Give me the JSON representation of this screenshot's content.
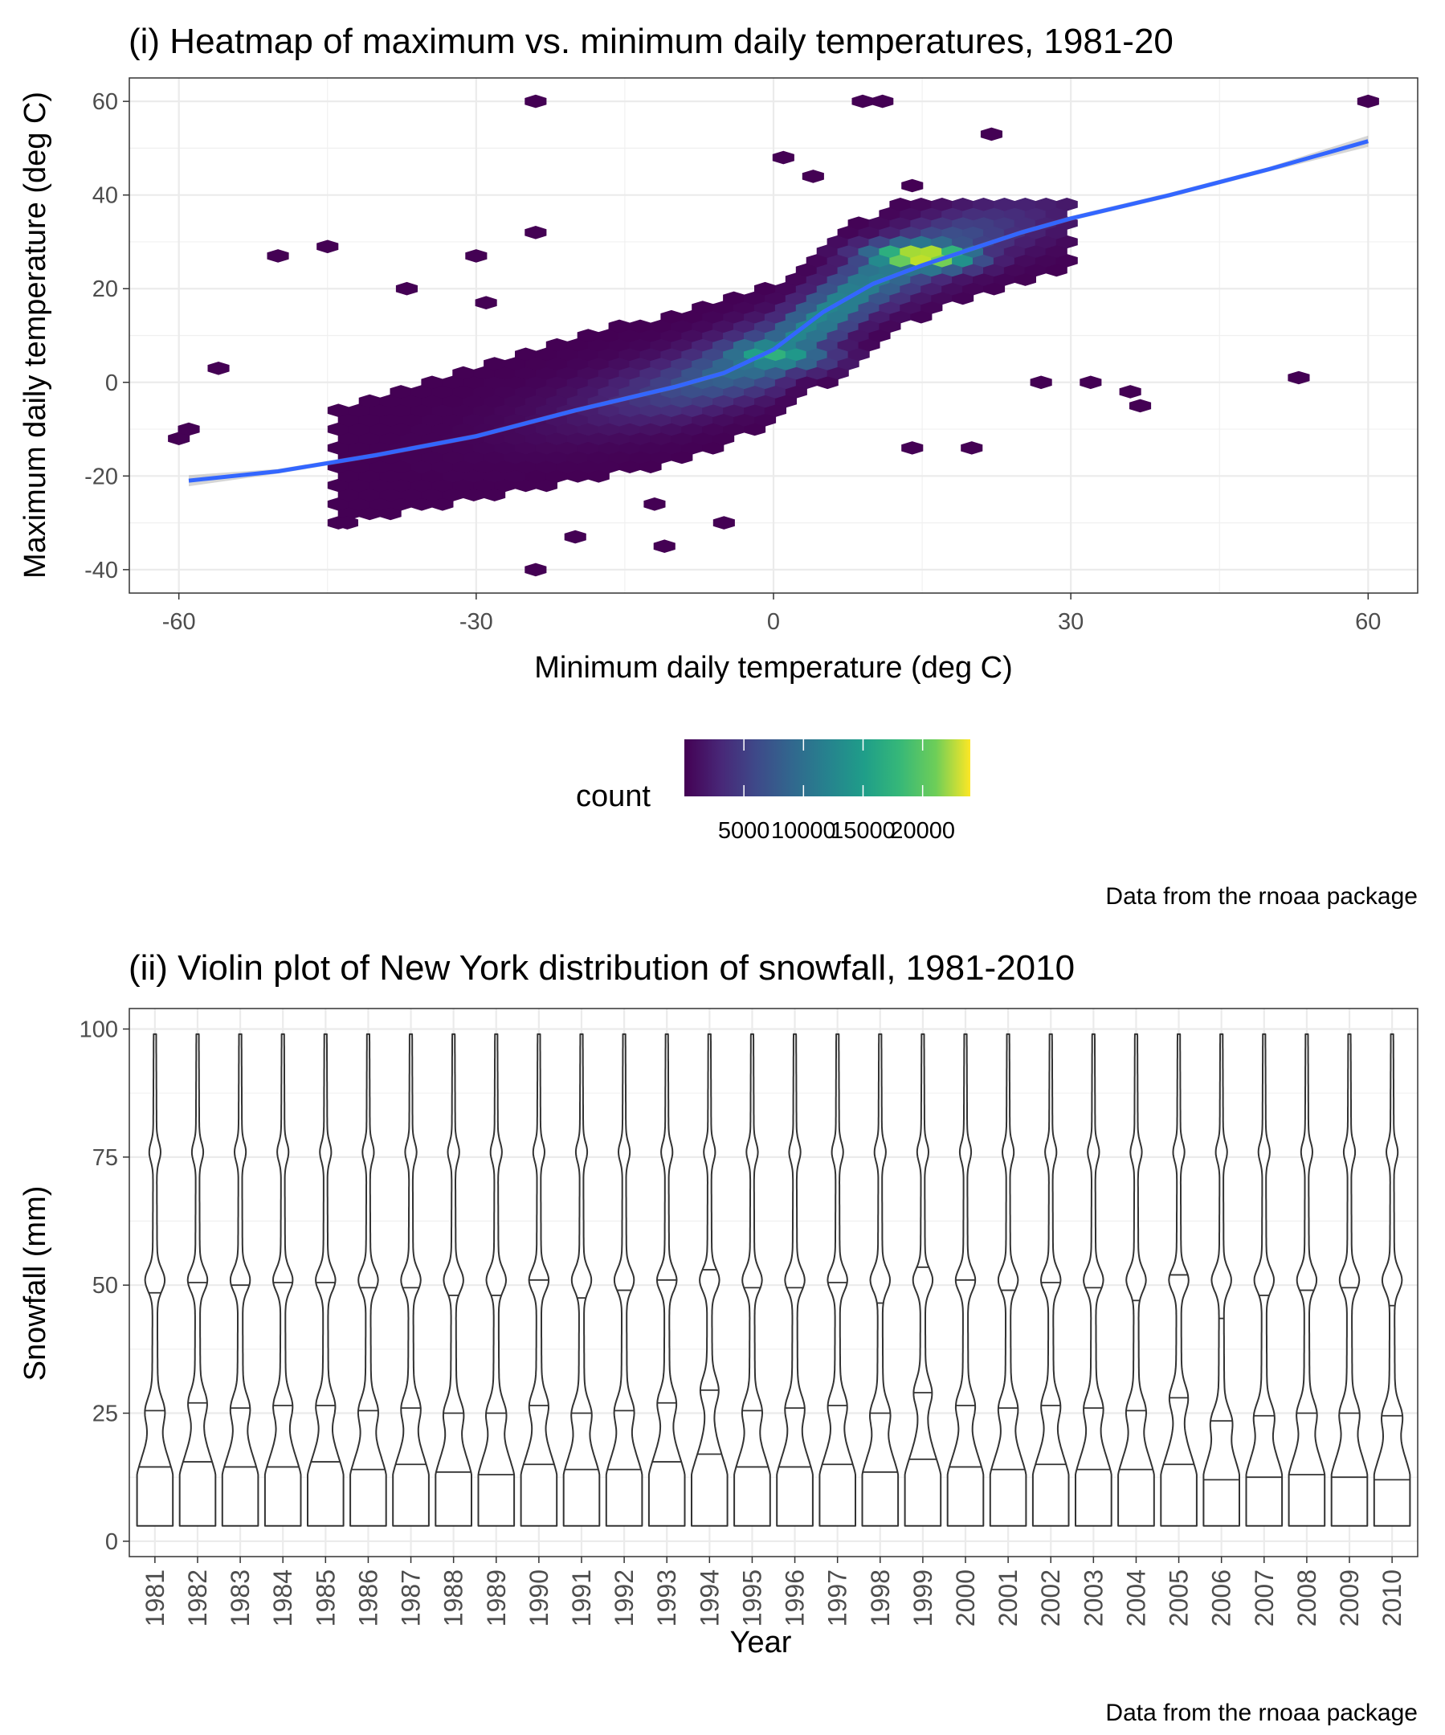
{
  "chart_data": [
    {
      "type": "heatmap",
      "subtype": "hexbin",
      "title": "(i) Heatmap of maximum vs. minimum daily temperatures, 1981-20",
      "xlabel": "Minimum daily temperature (deg C)",
      "ylabel": "Maximum daily temperature (deg C)",
      "xlim": [
        -65,
        65
      ],
      "ylim": [
        -45,
        65
      ],
      "x_ticks": [
        -60,
        -30,
        0,
        30,
        60
      ],
      "y_ticks": [
        -40,
        -20,
        0,
        20,
        40,
        60
      ],
      "grid": true,
      "legend": {
        "title": "count",
        "position": "bottom",
        "scale": "viridis",
        "range": [
          1,
          24000
        ],
        "tick_values": [
          5000,
          10000,
          15000,
          20000
        ],
        "tick_labels": [
          "5000",
          "10000",
          "15000",
          "20000"
        ]
      },
      "density_core": {
        "description_free": false,
        "peak": {
          "x": 15,
          "y": 27,
          "count": 23000
        },
        "ridge": [
          [
            -40,
            -16
          ],
          [
            -30,
            -11
          ],
          [
            -20,
            -6
          ],
          [
            -10,
            -1
          ],
          [
            0,
            6
          ],
          [
            5,
            14
          ],
          [
            10,
            22
          ],
          [
            15,
            27
          ],
          [
            20,
            31
          ],
          [
            25,
            34
          ]
        ]
      },
      "outlier_points": [
        {
          "x": -60,
          "y": -12
        },
        {
          "x": -59,
          "y": -10
        },
        {
          "x": -56,
          "y": 3
        },
        {
          "x": -50,
          "y": 27
        },
        {
          "x": -45,
          "y": 29
        },
        {
          "x": -43,
          "y": -30
        },
        {
          "x": -37,
          "y": 20
        },
        {
          "x": -30,
          "y": 27
        },
        {
          "x": -29,
          "y": 17
        },
        {
          "x": -24,
          "y": 60
        },
        {
          "x": -24,
          "y": -40
        },
        {
          "x": -24,
          "y": 32
        },
        {
          "x": -20,
          "y": -33
        },
        {
          "x": -12,
          "y": -26
        },
        {
          "x": -11,
          "y": -35
        },
        {
          "x": -5,
          "y": -30
        },
        {
          "x": 1,
          "y": 48
        },
        {
          "x": 4,
          "y": 44
        },
        {
          "x": 9,
          "y": 60
        },
        {
          "x": 11,
          "y": 60
        },
        {
          "x": 14,
          "y": 42
        },
        {
          "x": 22,
          "y": 53
        },
        {
          "x": 37,
          "y": -5
        },
        {
          "x": 53,
          "y": 1
        },
        {
          "x": 60,
          "y": 60
        },
        {
          "x": 14,
          "y": -14
        },
        {
          "x": 20,
          "y": -14
        },
        {
          "x": 27,
          "y": 0
        },
        {
          "x": 32,
          "y": 0
        },
        {
          "x": 36,
          "y": -2
        }
      ],
      "smooth_line": {
        "color": "#3366FF",
        "points": [
          [
            -59,
            -21
          ],
          [
            -50,
            -19
          ],
          [
            -40,
            -15.5
          ],
          [
            -30,
            -11.5
          ],
          [
            -20,
            -6
          ],
          [
            -10,
            -1
          ],
          [
            -5,
            2
          ],
          [
            0,
            7
          ],
          [
            5,
            15
          ],
          [
            10,
            21
          ],
          [
            15,
            25
          ],
          [
            20,
            28.5
          ],
          [
            25,
            32
          ],
          [
            30,
            35
          ],
          [
            35,
            37.5
          ],
          [
            40,
            40
          ],
          [
            50,
            45.5
          ],
          [
            60,
            51.5
          ]
        ]
      },
      "caption": "Data from the rnoaa package"
    },
    {
      "type": "violin",
      "title": "(ii) Violin plot of New York distribution of snowfall, 1981-2010",
      "xlabel": "Year",
      "ylabel": "Snowfall (mm)",
      "ylim": [
        -3,
        104
      ],
      "y_ticks": [
        0,
        25,
        50,
        75,
        100
      ],
      "grid": true,
      "categories": [
        "1981",
        "1982",
        "1983",
        "1984",
        "1985",
        "1986",
        "1987",
        "1988",
        "1989",
        "1990",
        "1991",
        "1992",
        "1993",
        "1994",
        "1995",
        "1996",
        "1997",
        "1998",
        "1999",
        "2000",
        "2001",
        "2002",
        "2003",
        "2004",
        "2005",
        "2006",
        "2007",
        "2008",
        "2009",
        "2010"
      ],
      "y_min": 3,
      "y_max": 99,
      "quantile_lines": [
        [
          14.5,
          25.5,
          48.5
        ],
        [
          15.5,
          27,
          50.5
        ],
        [
          14.5,
          26,
          50
        ],
        [
          14.5,
          26.5,
          50.5
        ],
        [
          15.5,
          26.5,
          50.5
        ],
        [
          14,
          25.5,
          49.5
        ],
        [
          15,
          26,
          49.5
        ],
        [
          13.5,
          25,
          48
        ],
        [
          13,
          25,
          48
        ],
        [
          15,
          26.5,
          51
        ],
        [
          14,
          25,
          47.5
        ],
        [
          14,
          25.5,
          49
        ],
        [
          15.5,
          27,
          51
        ],
        [
          17,
          29.5,
          53
        ],
        [
          14.5,
          25.5,
          49.5
        ],
        [
          14.5,
          26,
          49.5
        ],
        [
          15,
          26.5,
          50.5
        ],
        [
          13.5,
          25,
          46.5
        ],
        [
          16,
          29,
          53.5
        ],
        [
          14.5,
          26.5,
          51
        ],
        [
          14,
          26,
          49
        ],
        [
          15,
          26.5,
          50.5
        ],
        [
          14,
          26,
          49.5
        ],
        [
          14,
          25.5,
          47
        ],
        [
          15,
          28,
          52
        ],
        [
          12,
          23.5,
          43.5
        ],
        [
          12.5,
          24.5,
          48
        ],
        [
          13,
          25,
          49
        ],
        [
          12.5,
          25,
          49.5
        ],
        [
          12,
          24.5,
          46
        ]
      ],
      "caption": "Data from the rnoaa package"
    }
  ]
}
